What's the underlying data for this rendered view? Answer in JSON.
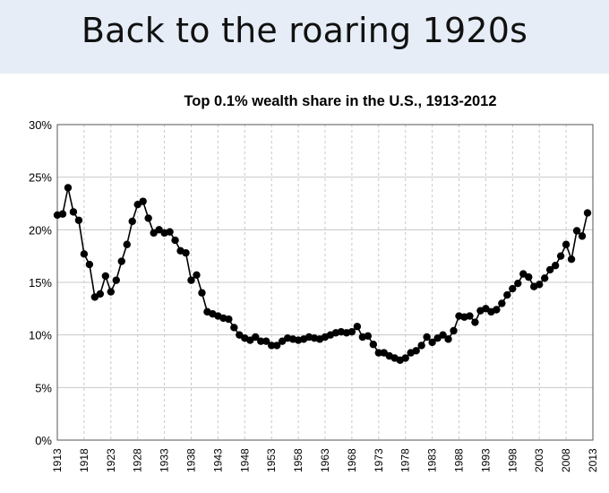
{
  "banner": {
    "title": "Back to the roaring 1920s"
  },
  "colors": {
    "banner_bg": "#e6edf6",
    "series": "#000000",
    "grid": "#c8c8c8"
  },
  "chart_data": {
    "type": "line",
    "title": "Top 0.1% wealth share in the U.S., 1913-2012",
    "xlabel": "",
    "ylabel": "",
    "xlim": [
      1913,
      2013
    ],
    "ylim": [
      0,
      30
    ],
    "grid": true,
    "markers": "filled-circle",
    "y_ticks": [
      "0%",
      "5%",
      "10%",
      "15%",
      "20%",
      "25%",
      "30%"
    ],
    "x_ticks": [
      "1913",
      "1918",
      "1923",
      "1928",
      "1933",
      "1938",
      "1943",
      "1948",
      "1953",
      "1958",
      "1963",
      "1968",
      "1973",
      "1978",
      "1983",
      "1988",
      "1993",
      "1998",
      "2003",
      "2008",
      "2013"
    ],
    "x": [
      1913,
      1914,
      1915,
      1916,
      1917,
      1918,
      1919,
      1920,
      1921,
      1922,
      1923,
      1924,
      1925,
      1926,
      1927,
      1928,
      1929,
      1930,
      1931,
      1932,
      1933,
      1934,
      1935,
      1936,
      1937,
      1938,
      1939,
      1940,
      1941,
      1942,
      1943,
      1944,
      1945,
      1946,
      1947,
      1948,
      1949,
      1950,
      1951,
      1952,
      1953,
      1954,
      1955,
      1956,
      1957,
      1958,
      1959,
      1960,
      1961,
      1962,
      1963,
      1964,
      1965,
      1966,
      1967,
      1968,
      1969,
      1970,
      1971,
      1972,
      1973,
      1974,
      1975,
      1976,
      1977,
      1978,
      1979,
      1980,
      1981,
      1982,
      1983,
      1984,
      1985,
      1986,
      1987,
      1988,
      1989,
      1990,
      1991,
      1992,
      1993,
      1994,
      1995,
      1996,
      1997,
      1998,
      1999,
      2000,
      2001,
      2002,
      2003,
      2004,
      2005,
      2006,
      2007,
      2008,
      2009,
      2010,
      2011,
      2012
    ],
    "values": [
      21.4,
      21.5,
      24.0,
      21.7,
      20.9,
      17.7,
      16.7,
      13.6,
      13.9,
      15.6,
      14.1,
      15.2,
      17.0,
      18.6,
      20.8,
      22.4,
      22.7,
      21.1,
      19.7,
      20.0,
      19.7,
      19.8,
      19.0,
      18.0,
      17.8,
      15.2,
      15.7,
      14.0,
      12.2,
      12.0,
      11.8,
      11.6,
      11.5,
      10.7,
      10.0,
      9.7,
      9.5,
      9.8,
      9.4,
      9.4,
      9.0,
      9.0,
      9.4,
      9.7,
      9.6,
      9.5,
      9.6,
      9.8,
      9.7,
      9.6,
      9.8,
      10.0,
      10.2,
      10.3,
      10.2,
      10.3,
      10.8,
      9.8,
      9.9,
      9.1,
      8.3,
      8.3,
      8.0,
      7.8,
      7.6,
      7.8,
      8.3,
      8.5,
      9.0,
      9.8,
      9.3,
      9.7,
      10.0,
      9.6,
      10.4,
      11.8,
      11.7,
      11.8,
      11.2,
      12.3,
      12.5,
      12.2,
      12.4,
      13.0,
      13.8,
      14.4,
      14.9,
      15.8,
      15.5,
      14.6,
      14.8,
      15.4,
      16.2,
      16.6,
      17.5,
      18.6,
      17.2,
      19.9,
      19.4,
      21.6
    ]
  }
}
